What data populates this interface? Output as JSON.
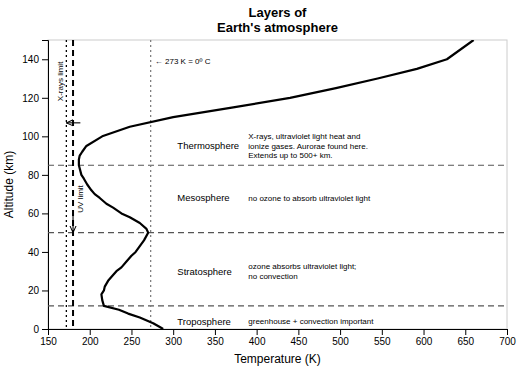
{
  "chart_data": {
    "type": "line",
    "title": "Layers of\nEarth's atmosphere",
    "xlabel": "Temperature (K)",
    "ylabel": "Altitude (km)",
    "xlim": [
      150,
      700
    ],
    "ylim": [
      0,
      150
    ],
    "xticks": [
      150,
      200,
      250,
      300,
      350,
      400,
      450,
      500,
      550,
      600,
      650,
      700
    ],
    "yticks": [
      0,
      20,
      40,
      60,
      80,
      100,
      120,
      140
    ],
    "grid": false,
    "series": [
      {
        "color": "black",
        "x": [
          288,
          284,
          276,
          260,
          246,
          235,
          217,
          215,
          214,
          217,
          218,
          222,
          228,
          232,
          238,
          244,
          250,
          255,
          260,
          265,
          270,
          268,
          260,
          248,
          238,
          228,
          220,
          212,
          206,
          202,
          197,
          193,
          190,
          187,
          187,
          188,
          191,
          196,
          215,
          248,
          300,
          372,
          440,
          495,
          545,
          592,
          628,
          660
        ],
        "values": [
          0,
          1,
          3,
          6,
          8,
          10,
          12,
          15,
          18,
          20,
          22,
          25,
          28,
          30,
          32,
          35,
          38,
          40,
          43,
          46,
          50,
          52,
          55,
          58,
          60,
          63,
          65,
          68,
          70,
          72,
          75,
          78,
          80,
          85,
          88,
          90,
          92,
          95,
          100,
          105,
          110,
          115,
          120,
          125,
          130,
          135,
          140,
          150
        ]
      }
    ],
    "hlines": {
      "values": [
        12,
        50,
        85
      ],
      "line_style": "dashed",
      "color": "#555555"
    },
    "vlines": [
      {
        "value": 172,
        "label": "X-rays limit",
        "arrow_alt": 107,
        "line_style": "dotted",
        "color": "black"
      },
      {
        "value": 180,
        "label": "UV limit",
        "arrow_alt": 50,
        "line_style": "dashed",
        "color": "black"
      },
      {
        "value": 273,
        "line_style": "dotted",
        "color": "gray"
      }
    ],
    "annotations": [
      {
        "text": "← 273 K = 0º C",
        "x": 278,
        "y": 139
      },
      {
        "text": "Troposphere",
        "x": 305,
        "y": 4
      },
      {
        "text": "Stratosphere",
        "x": 305,
        "y": 30
      },
      {
        "text": "Mesosphere",
        "x": 305,
        "y": 68
      },
      {
        "text": "Thermosphere",
        "x": 305,
        "y": 95
      },
      {
        "text": "greenhouse + convection important",
        "x": 390,
        "y": 4
      },
      {
        "text": "ozone absorbs ultraviolet light;\nno convection",
        "x": 390,
        "y": 30
      },
      {
        "text": "no ozone to absorb ultraviolet light",
        "x": 390,
        "y": 68
      },
      {
        "text": "X-rays, ultraviolet light heat and\nionize gases. Aurorae found here.\nExtends up to 500+ km.",
        "x": 390,
        "y": 95
      }
    ]
  }
}
